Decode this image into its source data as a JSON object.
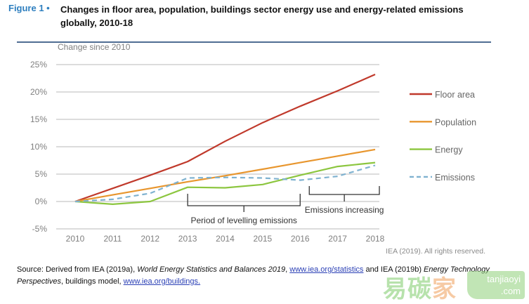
{
  "header": {
    "figure_label": "Figure 1 •",
    "title": "Changes in floor area, population, buildings sector energy use and energy-related emissions globally, 2010-18"
  },
  "chart_data": {
    "type": "line",
    "title": "Changes in floor area, population, buildings sector energy use and energy-related emissions globally, 2010-18",
    "ylabel": "Change since 2010",
    "xlabel": "",
    "x": [
      "2010",
      "2011",
      "2012",
      "2013",
      "2014",
      "2015",
      "2016",
      "2017",
      "2018"
    ],
    "ylim": [
      -5,
      25
    ],
    "yticks": [
      -5,
      0,
      5,
      10,
      15,
      20,
      25
    ],
    "ytick_labels": [
      "-5%",
      "0%",
      "5%",
      "10%",
      "15%",
      "20%",
      "25%"
    ],
    "grid": true,
    "legend_position": "right",
    "series": [
      {
        "name": "Floor area",
        "color": "#c0392b",
        "style": "solid",
        "values": [
          0,
          2.4,
          4.8,
          7.3,
          11.0,
          14.4,
          17.4,
          20.2,
          23.2
        ]
      },
      {
        "name": "Population",
        "color": "#e8962e",
        "style": "solid",
        "values": [
          0,
          1.2,
          2.4,
          3.6,
          4.7,
          5.9,
          7.1,
          8.3,
          9.5
        ]
      },
      {
        "name": "Energy",
        "color": "#8cc63f",
        "style": "solid",
        "values": [
          0,
          -0.5,
          0,
          2.6,
          2.5,
          3.1,
          4.8,
          6.4,
          7.1
        ]
      },
      {
        "name": "Emissions",
        "color": "#7fb2d0",
        "style": "dashed",
        "values": [
          0,
          0.4,
          1.5,
          4.3,
          4.4,
          4.3,
          3.9,
          4.6,
          6.6
        ]
      }
    ],
    "annotations": [
      {
        "text": "Period of levelling emissions",
        "from": "2013",
        "to": "2016"
      },
      {
        "text": "Emissions increasing",
        "from": "2016",
        "to": "2018"
      }
    ]
  },
  "footer": {
    "rights": "IEA (2019). All rights reserved.",
    "source_prefix": "Source: Derived from IEA (2019a), ",
    "source_italic_1": "World Energy Statistics and Balances 2019",
    "source_sep_1": ", ",
    "source_link_1": "www.iea.org/statistics",
    "source_mid": " and IEA (2019b) ",
    "source_italic_2": "Energy Technology Perspectives",
    "source_mid_2": ", buildings model, ",
    "source_link_2": "www.iea.org/buildings."
  },
  "watermark": {
    "chars": [
      "易",
      "碳",
      "家"
    ],
    "domain_line1": "tanjiaoyi",
    "domain_line2": ".com"
  }
}
